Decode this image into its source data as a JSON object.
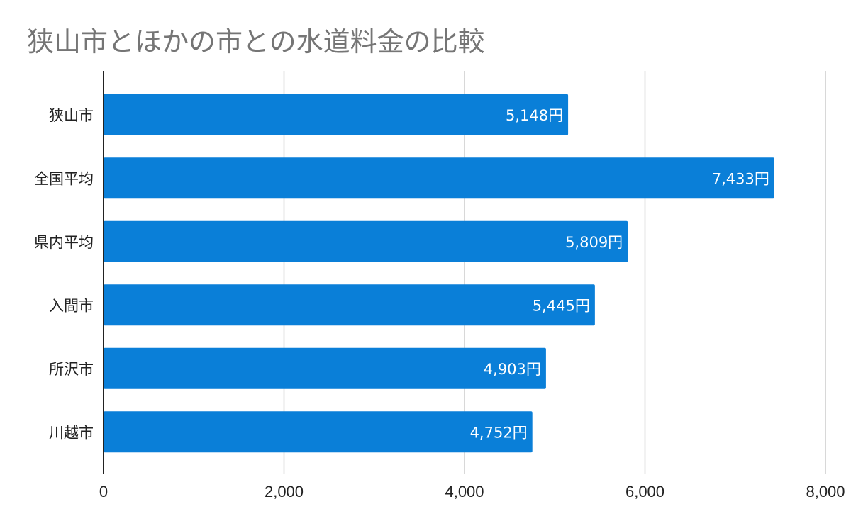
{
  "chart_data": {
    "type": "bar",
    "orientation": "horizontal",
    "title": "狭山市とほかの市との水道料金の比較",
    "categories": [
      "狭山市",
      "全国平均",
      "県内平均",
      "入間市",
      "所沢市",
      "川越市"
    ],
    "values": [
      5148,
      7433,
      5809,
      5445,
      4903,
      4752
    ],
    "data_labels": [
      "5,148円",
      "7,433円",
      "5,809円",
      "5,445円",
      "4,903円",
      "4,752円"
    ],
    "x_ticks": [
      "0",
      "2,000",
      "4,000",
      "6,000",
      "8,000"
    ],
    "xlim": [
      0,
      8000
    ],
    "grid": true,
    "legend": "none",
    "bar_color": "#0a7fd8"
  }
}
